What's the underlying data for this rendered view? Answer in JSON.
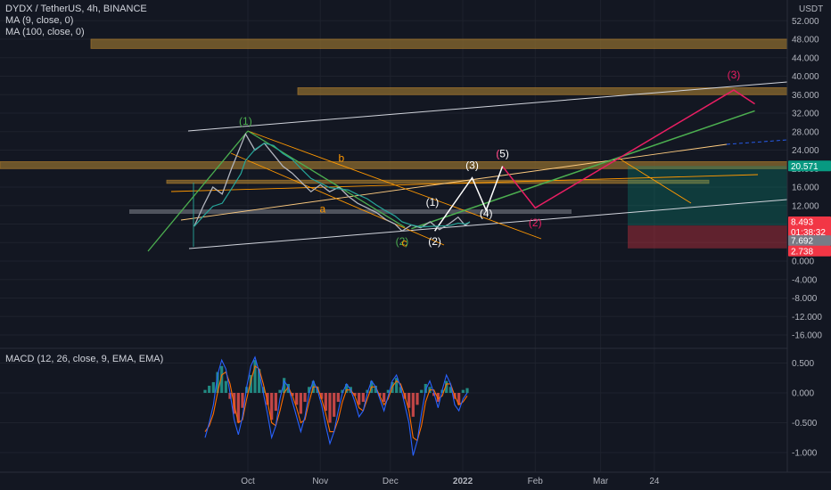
{
  "header": {
    "symbol_line": "DYDX / TetherUS, 4h, BINANCE",
    "ma1": "MA (9, close, 0)",
    "ma2": "MA (100, close, 0)",
    "macd_label": "MACD (12, 26, close, 9, EMA, EMA)"
  },
  "colors": {
    "background": "#131722",
    "grid": "#1e222d",
    "macd_line": "#2962ff",
    "signal_line": "#ff6d00",
    "hist_up": "#26a69a",
    "hist_down": "#ef5350",
    "price_tag": "#f23645",
    "target_tag": "#089981",
    "zone_orange": "#8a6a2e",
    "wave_green": "#4caf50",
    "wave_pink": "#e91e63"
  },
  "chart_data": [
    {
      "type": "line",
      "title": "DYDX / TetherUS, 4h, BINANCE",
      "currency": "USDT",
      "x_ticks": [
        "Oct",
        "Nov",
        "Dec",
        "2022",
        "Feb",
        "Mar",
        "24"
      ],
      "y_ticks": [
        "52.000",
        "48.000",
        "44.000",
        "40.000",
        "36.000",
        "32.000",
        "28.000",
        "24.000",
        "20.000",
        "16.000",
        "12.000",
        "8.000",
        "4.000",
        "0.000",
        "-4.000",
        "-8.000",
        "-12.000",
        "-16.000"
      ],
      "ylim": [
        -18,
        54
      ],
      "price_series": [
        {
          "x": "2021-09-08",
          "y": 7.5
        },
        {
          "x": "2021-09-12",
          "y": 12.0
        },
        {
          "x": "2021-09-16",
          "y": 16.0
        },
        {
          "x": "2021-09-20",
          "y": 14.5
        },
        {
          "x": "2021-09-24",
          "y": 20.0
        },
        {
          "x": "2021-09-28",
          "y": 25.0
        },
        {
          "x": "2021-09-30",
          "y": 27.5
        },
        {
          "x": "2021-10-04",
          "y": 24.0
        },
        {
          "x": "2021-10-08",
          "y": 25.5
        },
        {
          "x": "2021-10-12",
          "y": 23.0
        },
        {
          "x": "2021-10-16",
          "y": 20.5
        },
        {
          "x": "2021-10-20",
          "y": 19.0
        },
        {
          "x": "2021-10-24",
          "y": 17.0
        },
        {
          "x": "2021-10-28",
          "y": 15.0
        },
        {
          "x": "2021-11-01",
          "y": 16.5
        },
        {
          "x": "2021-11-05",
          "y": 15.0
        },
        {
          "x": "2021-11-09",
          "y": 16.0
        },
        {
          "x": "2021-11-13",
          "y": 14.0
        },
        {
          "x": "2021-11-17",
          "y": 12.5
        },
        {
          "x": "2021-11-21",
          "y": 11.5
        },
        {
          "x": "2021-11-25",
          "y": 10.5
        },
        {
          "x": "2021-11-29",
          "y": 9.0
        },
        {
          "x": "2021-12-03",
          "y": 8.0
        },
        {
          "x": "2021-12-06",
          "y": 6.5
        },
        {
          "x": "2021-12-10",
          "y": 7.8
        },
        {
          "x": "2021-12-14",
          "y": 7.2
        },
        {
          "x": "2021-12-18",
          "y": 8.5
        },
        {
          "x": "2021-12-22",
          "y": 6.8
        },
        {
          "x": "2021-12-26",
          "y": 8.0
        },
        {
          "x": "2021-12-30",
          "y": 9.5
        },
        {
          "x": "2022-01-02",
          "y": 7.7
        },
        {
          "x": "2022-01-04",
          "y": 8.49
        }
      ],
      "wave_labels": [
        {
          "text": "(1)",
          "color": "#4caf50",
          "x": "2021-09-30",
          "y": 29.5
        },
        {
          "text": "(2)",
          "color": "#4caf50",
          "x": "2021-12-06",
          "y": 3.5
        },
        {
          "text": "a",
          "color": "#ff9800",
          "x": "2021-11-02",
          "y": 10.5
        },
        {
          "text": "b",
          "color": "#ff9800",
          "x": "2021-11-10",
          "y": 21.5
        },
        {
          "text": "c",
          "color": "#ff9800",
          "x": "2021-12-07",
          "y": 3.2
        },
        {
          "text": "(1)",
          "color": "#ffffff",
          "x": "2021-12-19",
          "y": 12.0
        },
        {
          "text": "(2)",
          "color": "#ffffff",
          "x": "2021-12-20",
          "y": 3.5
        },
        {
          "text": "(3)",
          "color": "#ffffff",
          "x": "2022-01-05",
          "y": 20.0
        },
        {
          "text": "(4)",
          "color": "#ffffff",
          "x": "2022-01-11",
          "y": 9.5
        },
        {
          "text": "(5)",
          "color": "#ffffff",
          "x": "2022-01-18",
          "y": 22.5
        },
        {
          "text": "(",
          "color": "#e91e63",
          "x": "2022-01-16",
          "y": 22.5
        },
        {
          "text": "(2)",
          "color": "#e91e63",
          "x": "2022-02-01",
          "y": 7.5
        },
        {
          "text": "(3)",
          "color": "#e91e63",
          "x": "2022-04-27",
          "y": 39.5
        }
      ],
      "projection_white": [
        {
          "x": "2021-12-20",
          "y": 6.5
        },
        {
          "x": "2022-01-05",
          "y": 18.0
        },
        {
          "x": "2022-01-11",
          "y": 11.0
        },
        {
          "x": "2022-01-18",
          "y": 20.5
        }
      ],
      "projection_pink": [
        {
          "x": "2022-01-18",
          "y": 20.5
        },
        {
          "x": "2022-02-01",
          "y": 11.5
        },
        {
          "x": "2022-04-27",
          "y": 37.0
        },
        {
          "x": "2022-05-06",
          "y": 34.0
        }
      ],
      "projection_green": [
        {
          "x": "2021-12-10",
          "y": 7.0
        },
        {
          "x": "2022-05-06",
          "y": 32.5
        }
      ],
      "horizontal_zones": [
        {
          "from": 46.0,
          "to": 48.0
        },
        {
          "from": 36.0,
          "to": 37.5
        },
        {
          "from": 20.0,
          "to": 21.5
        },
        {
          "from": 16.8,
          "to": 17.5
        }
      ],
      "price_labels": {
        "target": "20.571",
        "current": "8.493",
        "countdown": "01:38:32",
        "entry": "7.692",
        "stop": "2.738"
      }
    },
    {
      "type": "bar",
      "title": "MACD (12, 26, close, 9, EMA, EMA)",
      "y_ticks": [
        "0.500",
        "0.000",
        "-0.500",
        "-1.000"
      ],
      "ylim": [
        -1.2,
        0.7
      ],
      "histogram": [
        0.05,
        0.12,
        0.18,
        0.35,
        0.45,
        0.2,
        -0.1,
        -0.35,
        -0.5,
        -0.25,
        0.1,
        0.3,
        0.55,
        0.4,
        0.1,
        -0.2,
        -0.45,
        -0.3,
        0.05,
        0.25,
        0.15,
        -0.05,
        -0.2,
        -0.35,
        -0.15,
        0.1,
        0.2,
        0.1,
        -0.1,
        -0.3,
        -0.5,
        -0.4,
        -0.15,
        0.05,
        0.15,
        0.1,
        -0.05,
        -0.2,
        -0.15,
        0.05,
        0.2,
        0.12,
        -0.05,
        -0.15,
        0.05,
        0.18,
        0.25,
        0.1,
        -0.1,
        -0.25,
        -0.4,
        -0.2,
        0.05,
        0.15,
        0.1,
        -0.05,
        -0.15,
        0.05,
        0.2,
        0.1,
        -0.1,
        -0.2,
        0.05,
        0.08
      ],
      "macd_line": [
        -0.75,
        -0.5,
        -0.2,
        0.3,
        0.55,
        0.4,
        0.0,
        -0.45,
        -0.7,
        -0.4,
        0.1,
        0.45,
        0.6,
        0.35,
        0.0,
        -0.35,
        -0.75,
        -0.55,
        -0.1,
        0.2,
        0.1,
        -0.15,
        -0.4,
        -0.65,
        -0.4,
        0.0,
        0.2,
        0.05,
        -0.2,
        -0.55,
        -0.85,
        -0.65,
        -0.3,
        0.0,
        0.15,
        0.05,
        -0.15,
        -0.4,
        -0.3,
        0.0,
        0.2,
        0.1,
        -0.1,
        -0.3,
        -0.05,
        0.2,
        0.3,
        0.1,
        -0.2,
        -0.5,
        -1.05,
        -0.8,
        -0.35,
        0.05,
        0.2,
        0.0,
        -0.25,
        0.05,
        0.3,
        0.15,
        -0.2,
        -0.3,
        -0.1,
        0.0
      ],
      "signal_line": [
        -0.65,
        -0.55,
        -0.35,
        0.0,
        0.3,
        0.35,
        0.15,
        -0.2,
        -0.5,
        -0.45,
        -0.1,
        0.2,
        0.45,
        0.4,
        0.15,
        -0.15,
        -0.5,
        -0.55,
        -0.3,
        0.0,
        0.1,
        -0.05,
        -0.25,
        -0.5,
        -0.45,
        -0.15,
        0.1,
        0.1,
        -0.1,
        -0.35,
        -0.65,
        -0.65,
        -0.45,
        -0.15,
        0.05,
        0.05,
        -0.05,
        -0.25,
        -0.3,
        -0.1,
        0.1,
        0.1,
        -0.05,
        -0.2,
        -0.1,
        0.1,
        0.2,
        0.15,
        -0.05,
        -0.3,
        -0.75,
        -0.8,
        -0.55,
        -0.15,
        0.05,
        0.05,
        -0.1,
        -0.05,
        0.15,
        0.15,
        -0.05,
        -0.2,
        -0.15,
        -0.05
      ]
    }
  ]
}
